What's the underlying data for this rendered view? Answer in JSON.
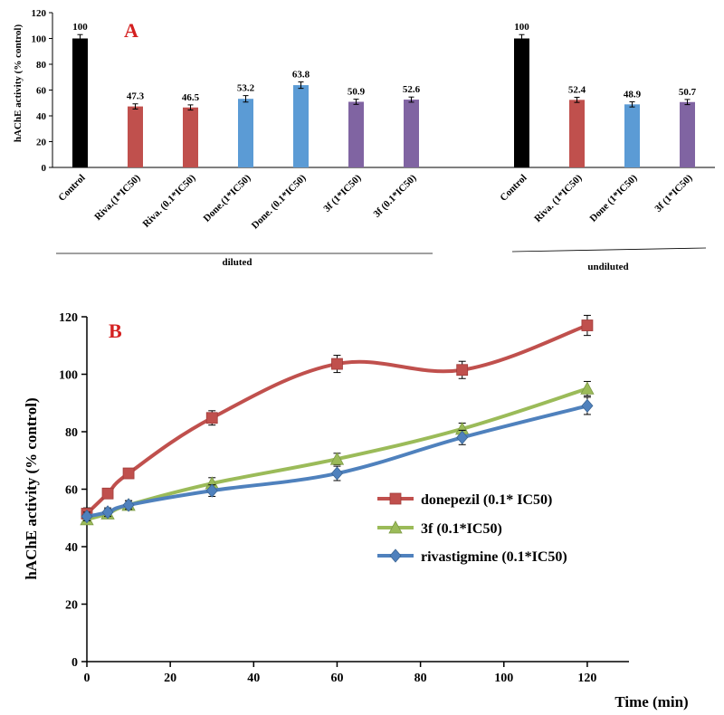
{
  "chart_data": [
    {
      "type": "bar",
      "panel_label": "A",
      "ylabel": "hAChE activity (% control)",
      "ylim": [
        0,
        120
      ],
      "yticks": [
        0,
        20,
        40,
        60,
        80,
        100,
        120
      ],
      "groups": [
        {
          "name": "diluted",
          "bars": [
            {
              "category": "Control",
              "value": 100,
              "label": "100",
              "error": 3,
              "color": "#000000"
            },
            {
              "category": "Riva.(1*IC50)",
              "value": 47.3,
              "label": "47.3",
              "error": 2,
              "color": "#c0504d"
            },
            {
              "category": "Riva. (0.1*IC50)",
              "value": 46.5,
              "label": "46.5",
              "error": 2,
              "color": "#c0504d"
            },
            {
              "category": "Done.(1*IC50)",
              "value": 53.2,
              "label": "53.2",
              "error": 2.5,
              "color": "#5b9bd5"
            },
            {
              "category": "Done. (0.1*IC50)",
              "value": 63.8,
              "label": "63.8",
              "error": 2.5,
              "color": "#5b9bd5"
            },
            {
              "category": "3f (1*IC50)",
              "value": 50.9,
              "label": "50.9",
              "error": 2,
              "color": "#8064a2"
            },
            {
              "category": "3f (0.1*IC50)",
              "value": 52.6,
              "label": "52.6",
              "error": 2,
              "color": "#8064a2"
            }
          ]
        },
        {
          "name": "undiluted",
          "bars": [
            {
              "category": "Control",
              "value": 100,
              "label": "100",
              "error": 3,
              "color": "#000000"
            },
            {
              "category": "Riva. (1*IC50)",
              "value": 52.4,
              "label": "52.4",
              "error": 2,
              "color": "#c0504d"
            },
            {
              "category": "Done (1*IC50)",
              "value": 48.9,
              "label": "48.9",
              "error": 2,
              "color": "#5b9bd5"
            },
            {
              "category": "3f (1*IC50)",
              "value": 50.7,
              "label": "50.7",
              "error": 2,
              "color": "#8064a2"
            }
          ]
        }
      ]
    },
    {
      "type": "line",
      "panel_label": "B",
      "xlabel": "Time (min)",
      "ylabel": "hAChE activity (% control)",
      "xlim": [
        0,
        130
      ],
      "ylim": [
        0,
        120
      ],
      "xticks": [
        0,
        20,
        40,
        60,
        80,
        100,
        120
      ],
      "yticks": [
        0,
        20,
        40,
        60,
        80,
        100,
        120
      ],
      "legend_position": "center-right",
      "series": [
        {
          "name": "donepezil (0.1* IC50)",
          "color": "#c0504d",
          "marker": "square",
          "x": [
            0,
            5,
            10,
            30,
            60,
            90,
            120
          ],
          "y": [
            51.5,
            58.5,
            65.5,
            84.8,
            103.6,
            101.5,
            117
          ],
          "error": [
            2,
            1.5,
            1.5,
            2.5,
            3,
            3,
            3.5
          ]
        },
        {
          "name": "3f (0.1*IC50)",
          "color": "#9bbb59",
          "marker": "triangle",
          "x": [
            0,
            5,
            10,
            30,
            60,
            90,
            120
          ],
          "y": [
            49.5,
            51.5,
            54.5,
            62,
            70.5,
            81,
            95
          ],
          "error": [
            1.5,
            1.5,
            1.5,
            2,
            2,
            2,
            2.5
          ]
        },
        {
          "name": "rivastigmine (0.1*IC50)",
          "color": "#4f81bd",
          "marker": "diamond",
          "x": [
            0,
            5,
            10,
            30,
            60,
            90,
            120
          ],
          "y": [
            50.5,
            52,
            54.5,
            59.5,
            65.5,
            78,
            89
          ],
          "error": [
            1.5,
            1.5,
            1.5,
            2,
            2.5,
            2.5,
            3
          ]
        }
      ]
    }
  ]
}
